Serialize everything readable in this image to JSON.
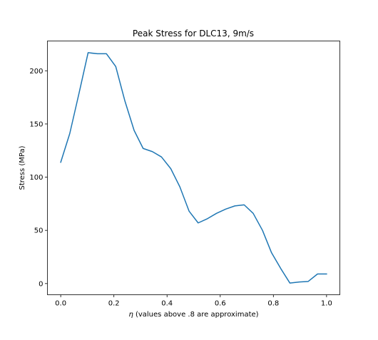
{
  "chart_data": {
    "type": "line",
    "title": "Peak Stress for DLC13, 9m/s",
    "xlabel_symbol": "η",
    "xlabel_text": " (values above .8 are approximate)",
    "ylabel": "Stress (MPa)",
    "xlim": [
      -0.05,
      1.05
    ],
    "ylim": [
      -10.5,
      228
    ],
    "xticks": [
      0.0,
      0.2,
      0.4,
      0.6,
      0.8,
      1.0
    ],
    "xtick_labels": [
      "0.0",
      "0.2",
      "0.4",
      "0.6",
      "0.8",
      "1.0"
    ],
    "yticks": [
      0,
      50,
      100,
      150,
      200
    ],
    "ytick_labels": [
      "0",
      "50",
      "100",
      "150",
      "200"
    ],
    "grid": false,
    "series": [
      {
        "color": "#1f77b4",
        "x": [
          0.0,
          0.034,
          0.069,
          0.103,
          0.138,
          0.172,
          0.207,
          0.241,
          0.276,
          0.31,
          0.345,
          0.379,
          0.414,
          0.448,
          0.483,
          0.517,
          0.552,
          0.586,
          0.621,
          0.655,
          0.69,
          0.724,
          0.759,
          0.793,
          0.828,
          0.862,
          0.897,
          0.931,
          0.966,
          1.0
        ],
        "y": [
          114,
          141,
          179,
          217,
          216,
          216,
          204,
          172,
          144,
          127,
          124,
          119,
          108,
          91,
          68,
          57,
          61,
          66,
          70,
          73,
          74,
          66,
          50,
          29,
          14,
          0.5,
          1.5,
          2,
          9,
          9
        ]
      }
    ]
  }
}
